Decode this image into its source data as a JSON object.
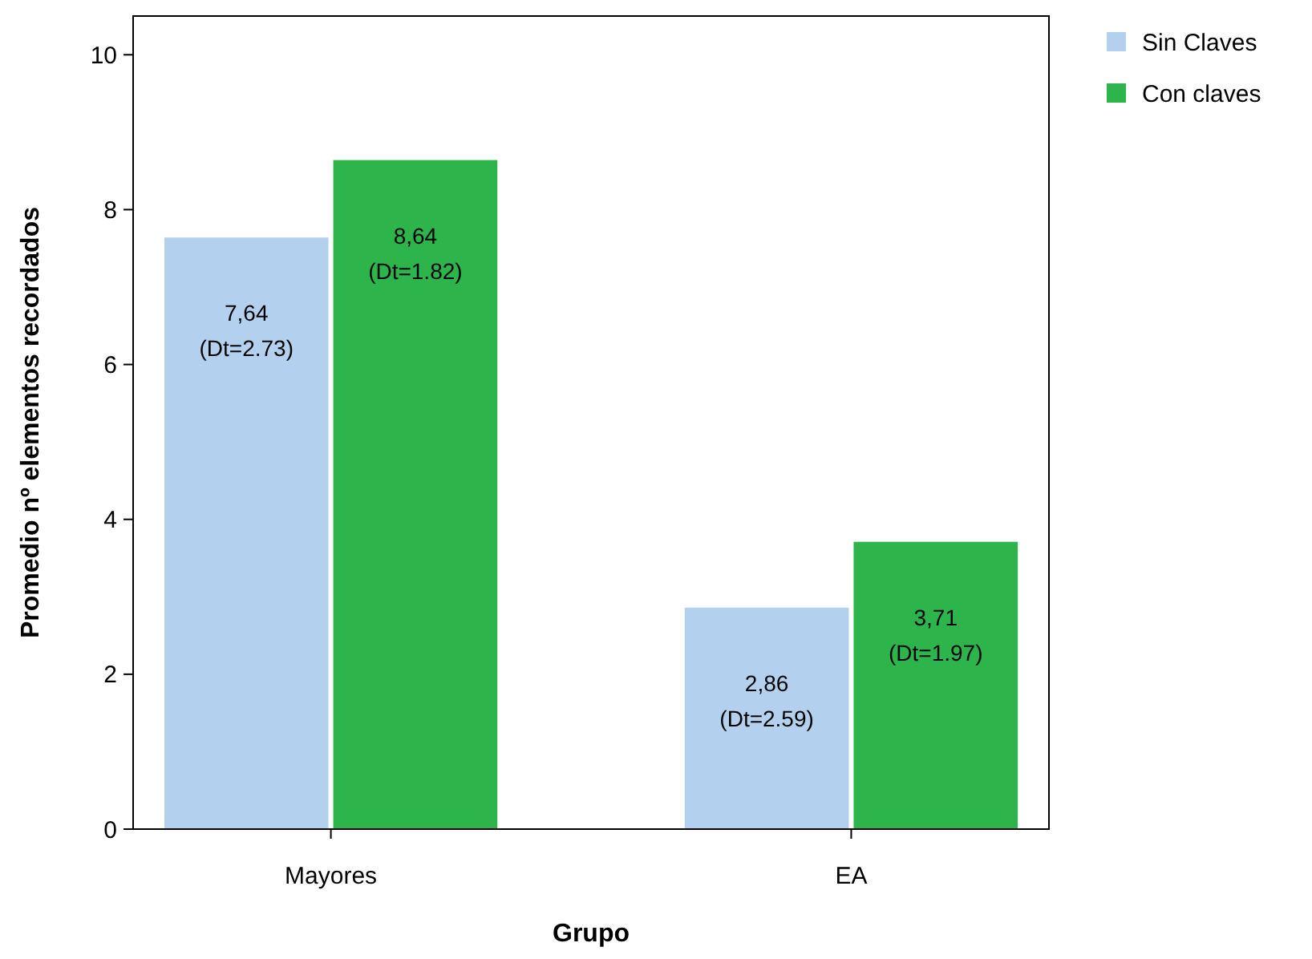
{
  "chart_data": {
    "type": "bar",
    "xlabel": "Grupo",
    "ylabel": "Promedio nº elementos recordados",
    "categories": [
      "Mayores",
      "EA"
    ],
    "series": [
      {
        "name": "Sin Claves",
        "color": "#b3d1ef",
        "values": [
          7.64,
          2.86
        ],
        "value_labels": [
          "7,64\n(Dt=2.73)",
          "2,86\n(Dt=2.59)"
        ]
      },
      {
        "name": "Con claves",
        "color": "#2db54b",
        "values": [
          8.64,
          3.71
        ],
        "value_labels": [
          "8,64\n(Dt=1.82)",
          "3,71\n(Dt=1.97)"
        ]
      }
    ],
    "ylim": [
      0,
      10.5
    ],
    "yticks": [
      0,
      2,
      4,
      6,
      8,
      10
    ],
    "grid": false,
    "legend": "top right"
  }
}
